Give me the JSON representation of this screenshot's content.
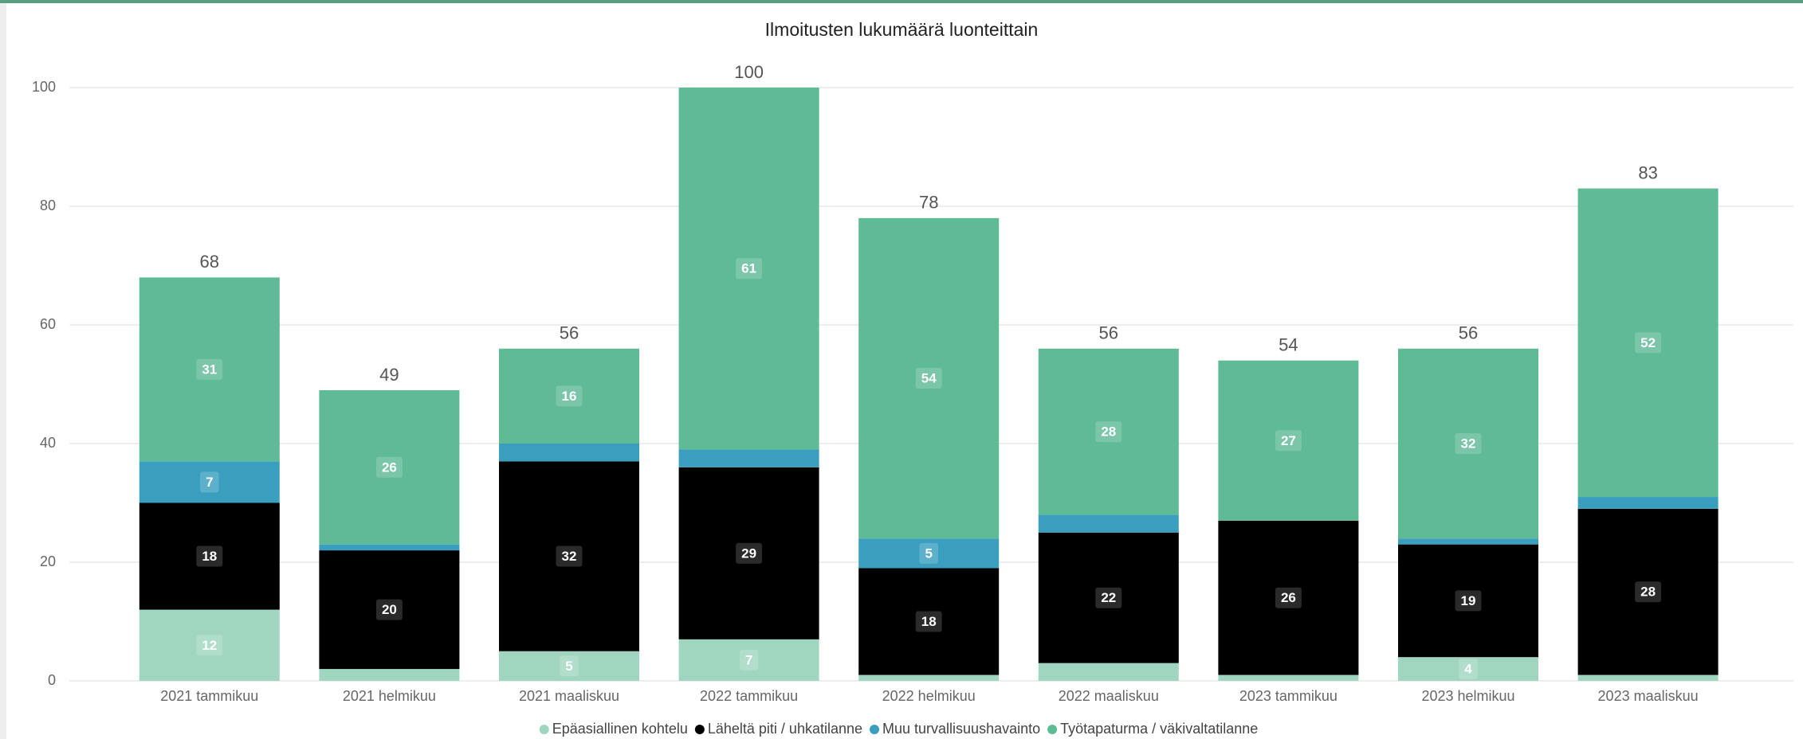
{
  "chart_data": {
    "type": "stacked_bar",
    "title": "Ilmoitusten lukumäärä luonteittain",
    "categories": [
      "2021 tammikuu",
      "2021 helmikuu",
      "2021 maaliskuu",
      "2022 tammikuu",
      "2022 helmikuu",
      "2022 maaliskuu",
      "2023 tammikuu",
      "2023 helmikuu",
      "2023 maaliskuu"
    ],
    "series": [
      {
        "name": "Epäasiallinen kohtelu",
        "color": "#a0d6c0",
        "values": [
          12,
          2,
          5,
          7,
          1,
          3,
          1,
          4,
          1
        ]
      },
      {
        "name": "Läheltä piti / uhkatilanne",
        "color": "#000000",
        "values": [
          18,
          20,
          32,
          29,
          18,
          22,
          26,
          19,
          28
        ]
      },
      {
        "name": "Muu turvallisuushavainto",
        "color": "#3a9fbf",
        "values": [
          7,
          1,
          3,
          3,
          5,
          3,
          0,
          1,
          2
        ]
      },
      {
        "name": "Työtapaturma / väkivaltatilanne",
        "color": "#5fba96",
        "values": [
          31,
          26,
          16,
          61,
          54,
          28,
          27,
          32,
          52
        ]
      }
    ],
    "totals": [
      68,
      49,
      56,
      100,
      78,
      56,
      54,
      56,
      83
    ],
    "ylim": [
      0,
      100
    ],
    "yticks": [
      0,
      20,
      40,
      60,
      80,
      100
    ],
    "grid": true,
    "legend": "bottom"
  }
}
